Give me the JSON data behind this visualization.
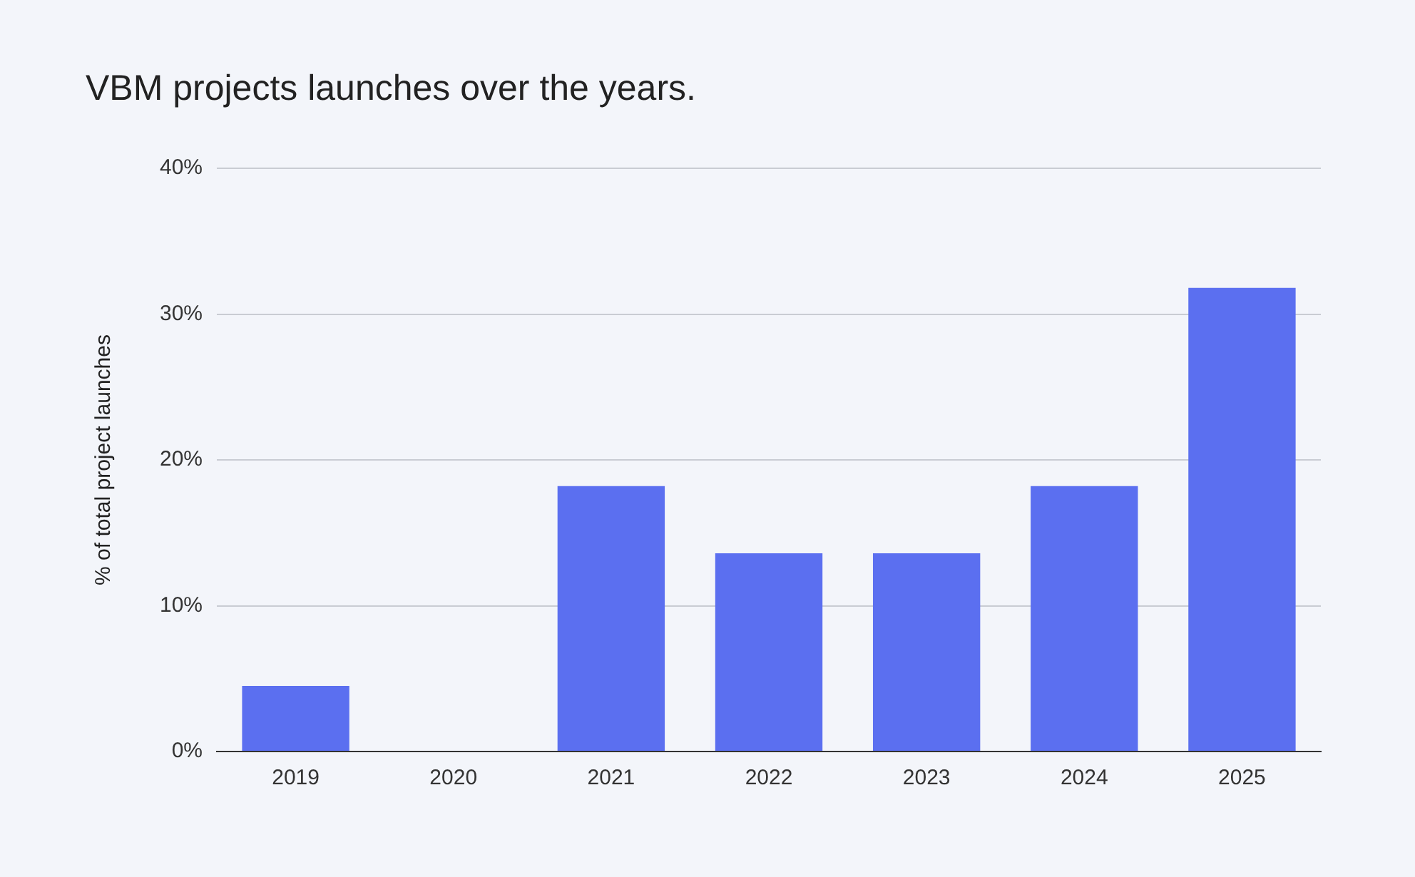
{
  "chart_data": {
    "type": "bar",
    "title": "VBM projects launches over the years.",
    "ylabel": "% of total project launches",
    "categories": [
      "2019",
      "2020",
      "2021",
      "2022",
      "2023",
      "2024",
      "2025"
    ],
    "values": [
      4.5,
      0,
      18.2,
      13.6,
      13.6,
      18.2,
      31.8
    ],
    "color": "#5b6ff0",
    "ylim": [
      0,
      40
    ],
    "yticks": [
      {
        "value": 0,
        "label": "0%"
      },
      {
        "value": 10,
        "label": "10%"
      },
      {
        "value": 20,
        "label": "20%"
      },
      {
        "value": 30,
        "label": "30%"
      },
      {
        "value": 40,
        "label": "40%"
      }
    ],
    "grid": "y",
    "legend": false
  }
}
